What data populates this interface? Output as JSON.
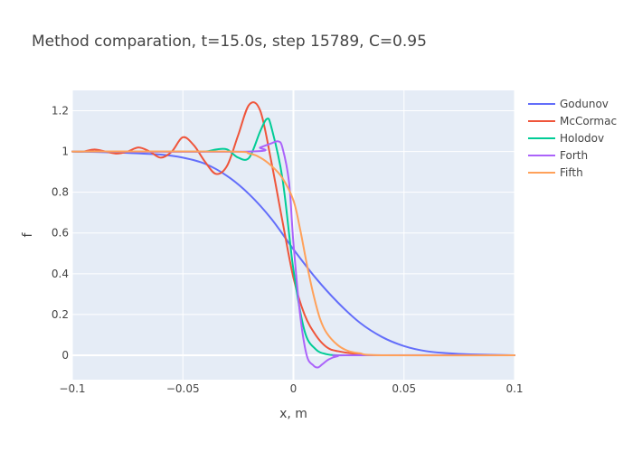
{
  "chart_data": {
    "type": "line",
    "title": "Method comparation, t=15.0s, step 15789, C=0.95",
    "xlabel": "x, m",
    "ylabel": "f",
    "xlim": [
      -0.1,
      0.1
    ],
    "ylim": [
      -0.12,
      1.3
    ],
    "xticks": [
      {
        "value": -0.1,
        "label": "−0.1"
      },
      {
        "value": -0.05,
        "label": "−0.05"
      },
      {
        "value": 0,
        "label": "0"
      },
      {
        "value": 0.05,
        "label": "0.05"
      },
      {
        "value": 0.1,
        "label": "0.1"
      }
    ],
    "yticks": [
      {
        "value": 0,
        "label": "0"
      },
      {
        "value": 0.2,
        "label": "0.2"
      },
      {
        "value": 0.4,
        "label": "0.4"
      },
      {
        "value": 0.6,
        "label": "0.6"
      },
      {
        "value": 0.8,
        "label": "0.8"
      },
      {
        "value": 1,
        "label": "1"
      },
      {
        "value": 1.2,
        "label": "1.2"
      }
    ],
    "grid": true,
    "legend_position": "top-right",
    "series": [
      {
        "name": "Godunov",
        "color": "#636efa",
        "x": [
          -0.1,
          -0.08,
          -0.06,
          -0.05,
          -0.04,
          -0.03,
          -0.02,
          -0.01,
          0,
          0.01,
          0.02,
          0.03,
          0.04,
          0.05,
          0.06,
          0.07,
          0.08,
          0.1
        ],
        "y": [
          1.0,
          0.995,
          0.985,
          0.97,
          0.94,
          0.88,
          0.79,
          0.67,
          0.52,
          0.38,
          0.26,
          0.16,
          0.09,
          0.045,
          0.02,
          0.01,
          0.004,
          0.0
        ]
      },
      {
        "name": "McCormac",
        "color": "#ef553b",
        "x": [
          -0.1,
          -0.095,
          -0.09,
          -0.085,
          -0.08,
          -0.075,
          -0.07,
          -0.065,
          -0.06,
          -0.055,
          -0.05,
          -0.045,
          -0.04,
          -0.035,
          -0.03,
          -0.025,
          -0.02,
          -0.015,
          -0.01,
          -0.005,
          0,
          0.005,
          0.01,
          0.015,
          0.02,
          0.03,
          0.04,
          0.1
        ],
        "y": [
          1.0,
          1.0,
          1.01,
          1.0,
          0.99,
          1.0,
          1.02,
          1.0,
          0.97,
          1.0,
          1.07,
          1.03,
          0.95,
          0.89,
          0.93,
          1.08,
          1.23,
          1.2,
          0.95,
          0.66,
          0.38,
          0.2,
          0.1,
          0.04,
          0.02,
          0.005,
          0.0,
          0.0
        ]
      },
      {
        "name": "Holodov",
        "color": "#00cc96",
        "x": [
          -0.1,
          -0.05,
          -0.04,
          -0.035,
          -0.03,
          -0.025,
          -0.02,
          -0.015,
          -0.012,
          -0.01,
          -0.005,
          0,
          0.005,
          0.01,
          0.015,
          0.02,
          0.03,
          0.1
        ],
        "y": [
          1.0,
          1.0,
          1.0,
          1.01,
          1.01,
          0.97,
          0.97,
          1.1,
          1.16,
          1.12,
          0.87,
          0.42,
          0.12,
          0.03,
          0.005,
          0.0,
          0.0,
          0.0
        ]
      },
      {
        "name": "Forth",
        "color": "#ab63fa",
        "x": [
          -0.1,
          -0.02,
          -0.015,
          -0.01,
          -0.007,
          -0.005,
          -0.002,
          0,
          0.003,
          0.006,
          0.009,
          0.011,
          0.013,
          0.016,
          0.02,
          0.025,
          0.1
        ],
        "y": [
          1.0,
          1.0,
          1.02,
          1.04,
          1.05,
          1.02,
          0.85,
          0.55,
          0.2,
          0.0,
          -0.05,
          -0.06,
          -0.045,
          -0.02,
          -0.005,
          0.0,
          0.0
        ]
      },
      {
        "name": "Fifth",
        "color": "#ffa15a",
        "x": [
          -0.1,
          -0.03,
          -0.02,
          -0.015,
          -0.01,
          -0.005,
          0,
          0.003,
          0.006,
          0.009,
          0.012,
          0.015,
          0.02,
          0.025,
          0.03,
          0.04,
          0.1
        ],
        "y": [
          1.0,
          1.0,
          0.99,
          0.97,
          0.93,
          0.87,
          0.76,
          0.62,
          0.45,
          0.3,
          0.18,
          0.11,
          0.05,
          0.02,
          0.01,
          0.0,
          0.0
        ]
      }
    ]
  }
}
